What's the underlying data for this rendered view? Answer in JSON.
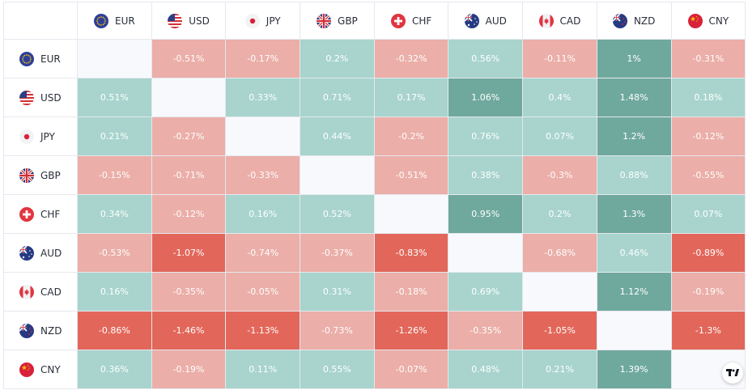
{
  "currencies": [
    {
      "code": "EUR",
      "icon": "eu-flag-icon"
    },
    {
      "code": "USD",
      "icon": "us-flag-icon"
    },
    {
      "code": "JPY",
      "icon": "japan-flag-icon"
    },
    {
      "code": "GBP",
      "icon": "uk-flag-icon"
    },
    {
      "code": "CHF",
      "icon": "swiss-flag-icon"
    },
    {
      "code": "AUD",
      "icon": "australia-flag-icon"
    },
    {
      "code": "CAD",
      "icon": "canada-flag-icon"
    },
    {
      "code": "NZD",
      "icon": "new-zealand-flag-icon"
    },
    {
      "code": "CNY",
      "icon": "china-flag-icon"
    }
  ],
  "colors": {
    "strong_neg": "#e2675a",
    "neg": "#ebaea8",
    "pos": "#a8d4cd",
    "strong_pos": "#6fa99d",
    "empty": "#f8f9fc"
  },
  "logo": {
    "icon": "tradingview-logo-icon"
  },
  "chart_data": {
    "type": "heatmap",
    "rows": [
      "EUR",
      "USD",
      "JPY",
      "GBP",
      "CHF",
      "AUD",
      "CAD",
      "NZD",
      "CNY"
    ],
    "columns": [
      "EUR",
      "USD",
      "JPY",
      "GBP",
      "CHF",
      "AUD",
      "CAD",
      "NZD",
      "CNY"
    ],
    "values": [
      [
        null,
        "-0.51%",
        "-0.17%",
        "0.2%",
        "-0.32%",
        "0.56%",
        "-0.11%",
        "1%",
        "-0.31%"
      ],
      [
        "0.51%",
        null,
        "0.33%",
        "0.71%",
        "0.17%",
        "1.06%",
        "0.4%",
        "1.48%",
        "0.18%"
      ],
      [
        "0.21%",
        "-0.27%",
        null,
        "0.44%",
        "-0.2%",
        "0.76%",
        "0.07%",
        "1.2%",
        "-0.12%"
      ],
      [
        "-0.15%",
        "-0.71%",
        "-0.33%",
        null,
        "-0.51%",
        "0.38%",
        "-0.3%",
        "0.88%",
        "-0.55%"
      ],
      [
        "0.34%",
        "-0.12%",
        "0.16%",
        "0.52%",
        null,
        "0.95%",
        "0.2%",
        "1.3%",
        "0.07%"
      ],
      [
        "-0.53%",
        "-1.07%",
        "-0.74%",
        "-0.37%",
        "-0.83%",
        null,
        "-0.68%",
        "0.46%",
        "-0.89%"
      ],
      [
        "0.16%",
        "-0.35%",
        "-0.05%",
        "0.31%",
        "-0.18%",
        "0.69%",
        null,
        "1.12%",
        "-0.19%"
      ],
      [
        "-0.86%",
        "-1.46%",
        "-1.13%",
        "-0.73%",
        "-1.26%",
        "-0.35%",
        "-1.05%",
        null,
        "-1.3%"
      ],
      [
        "0.36%",
        "-0.19%",
        "0.11%",
        "0.55%",
        "-0.07%",
        "0.48%",
        "0.21%",
        "1.39%",
        null
      ]
    ]
  }
}
